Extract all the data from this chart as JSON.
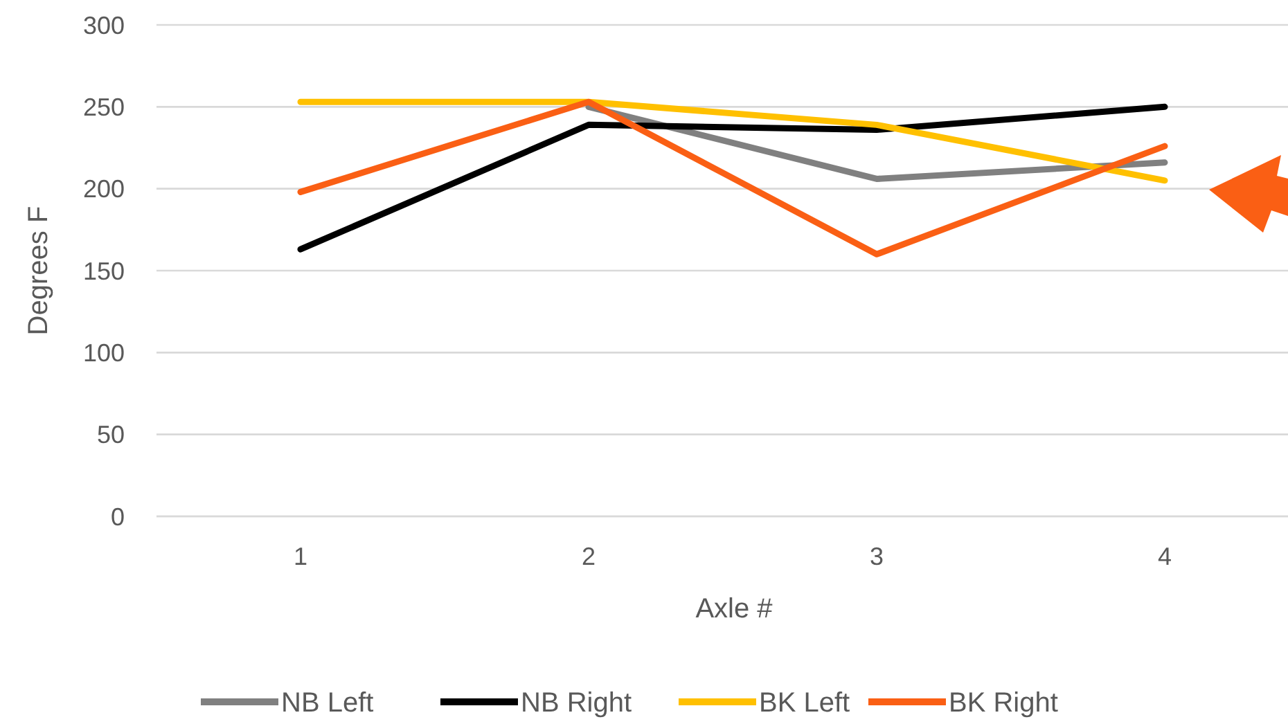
{
  "chart_data": {
    "type": "line",
    "ylabel": "Degrees F",
    "xlabel": "Axle #",
    "categories": [
      "1",
      "2",
      "3",
      "4"
    ],
    "ylim": [
      0,
      300
    ],
    "yticks": [
      0,
      50,
      100,
      150,
      200,
      250,
      300
    ],
    "grid": "y",
    "legend": "bottom",
    "marker": "none",
    "line_style": "solid",
    "series": [
      {
        "name": "NB Left",
        "color": "#808080",
        "values": [
          null,
          250,
          206,
          216
        ]
      },
      {
        "name": "NB Right",
        "color": "#000000",
        "values": [
          163,
          239,
          236,
          250
        ]
      },
      {
        "name": "BK Left",
        "color": "#ffc000",
        "values": [
          253,
          253,
          239,
          205
        ]
      },
      {
        "name": "BK Right",
        "color": "#fa5f14",
        "values": [
          198,
          253,
          160,
          226
        ]
      }
    ]
  }
}
